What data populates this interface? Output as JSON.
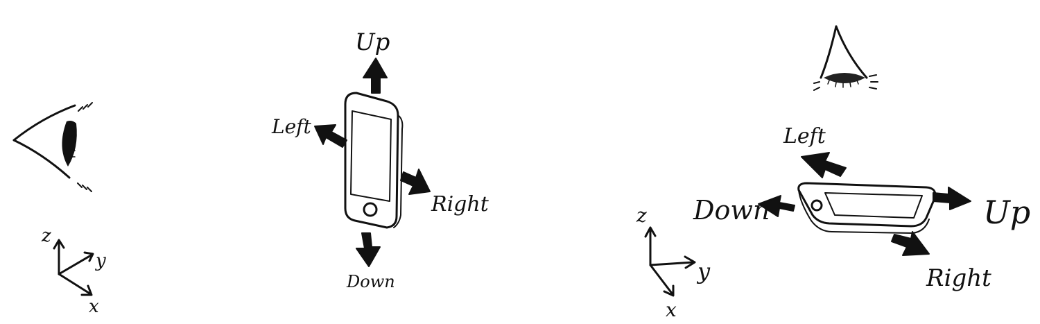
{
  "colors": {
    "ink": "#111111",
    "background": "#ffffff"
  },
  "left_panel": {
    "view": "side view",
    "eye_icon": "eye-side-icon",
    "axes": {
      "z": "z",
      "y": "y",
      "x": "x"
    },
    "directions": {
      "up": "Up",
      "left": "Left",
      "right": "Right",
      "down": "Down"
    }
  },
  "right_panel": {
    "view": "top view",
    "eye_icon": "eye-top-icon",
    "axes": {
      "z": "z",
      "y": "y",
      "x": "x"
    },
    "directions": {
      "left": "Left",
      "down": "Down",
      "up": "Up",
      "right": "Right"
    }
  }
}
